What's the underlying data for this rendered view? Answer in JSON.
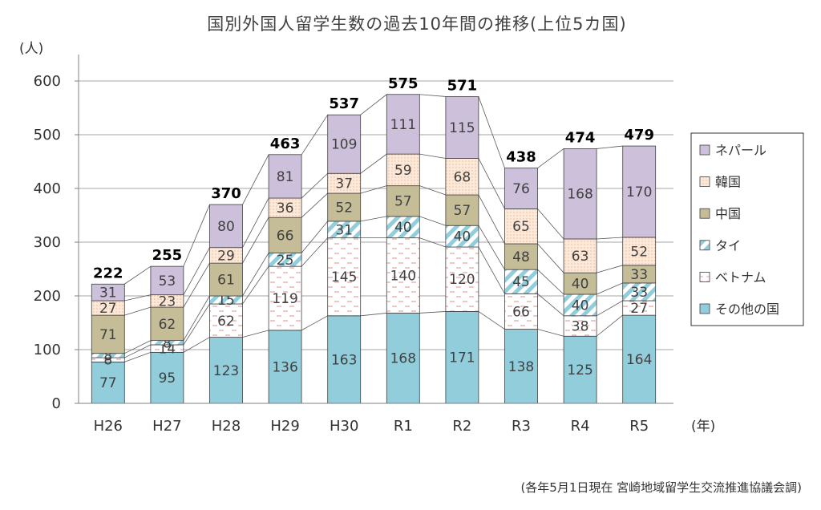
{
  "chart_data": {
    "type": "bar",
    "stacked": true,
    "title": "国別外国人留学生数の過去10年間の推移(上位5カ国)",
    "ylabel": "(人)",
    "xlabel": "(年)",
    "ylim": [
      0,
      600
    ],
    "yticks": [
      0,
      100,
      200,
      300,
      400,
      500,
      600
    ],
    "grid": true,
    "legend": "right",
    "categories": [
      "H26",
      "H27",
      "H28",
      "H29",
      "H30",
      "R1",
      "R2",
      "R3",
      "R4",
      "R5"
    ],
    "series": [
      {
        "name": "その他の国",
        "values": [
          77,
          95,
          123,
          136,
          163,
          168,
          171,
          138,
          125,
          164
        ],
        "color": "#92cddc",
        "pattern": "solid"
      },
      {
        "name": "ベトナム",
        "values": [
          8,
          14,
          62,
          119,
          145,
          140,
          120,
          66,
          38,
          27
        ],
        "color": "#ffffff",
        "pattern": "dash"
      },
      {
        "name": "タイ",
        "values": [
          8,
          8,
          15,
          25,
          31,
          40,
          40,
          45,
          40,
          33
        ],
        "color": "#92cddc",
        "pattern": "diag"
      },
      {
        "name": "中国",
        "values": [
          71,
          62,
          61,
          66,
          52,
          57,
          57,
          48,
          40,
          33
        ],
        "color": "#c4bd97",
        "pattern": "solid"
      },
      {
        "name": "韓国",
        "values": [
          27,
          23,
          29,
          36,
          37,
          59,
          68,
          65,
          63,
          52
        ],
        "color": "#fde9d9",
        "pattern": "dots"
      },
      {
        "name": "ネパール",
        "values": [
          31,
          53,
          80,
          81,
          109,
          111,
          115,
          76,
          168,
          170
        ],
        "color": "#ccc0da",
        "pattern": "solid"
      }
    ],
    "totals": [
      222,
      255,
      370,
      463,
      537,
      575,
      571,
      438,
      474,
      479
    ],
    "source": "(各年5月1日現在 宮崎地域留学生交流推進協議会調)"
  }
}
